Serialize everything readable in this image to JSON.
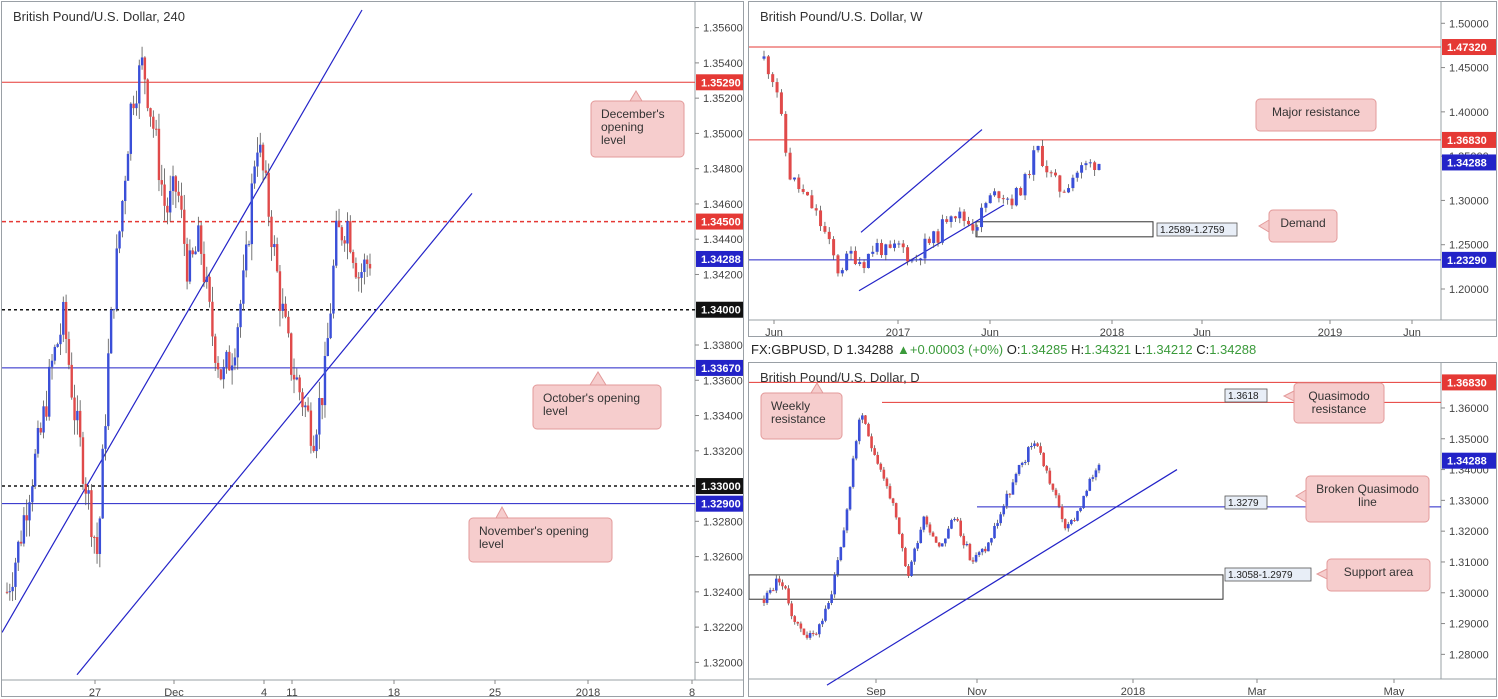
{
  "left_panel": {
    "title": "British Pound/U.S. Dollar, 240",
    "ticks": [
      "1.35600",
      "1.35400",
      "1.35200",
      "1.35000",
      "1.34800",
      "1.34600",
      "1.34400",
      "1.34200",
      "1.33800",
      "1.33600",
      "1.33400",
      "1.33200",
      "1.32800",
      "1.32600",
      "1.32400",
      "1.32200",
      "1.32000"
    ],
    "xticks": [
      "27",
      "Dec",
      "4",
      "11",
      "18",
      "25",
      "2018",
      "8"
    ],
    "price_tags": [
      "1.35290",
      "1.34500",
      "1.34288",
      "1.34000",
      "1.33670",
      "1.33000",
      "1.32900"
    ],
    "notes": [
      [
        "December's",
        "opening",
        "level"
      ],
      [
        "October's opening",
        "level"
      ],
      [
        "November's opening",
        "level"
      ]
    ]
  },
  "weekly_panel": {
    "title": "British Pound/U.S. Dollar, W",
    "ticks": [
      "1.50000",
      "1.45000",
      "1.40000",
      "1.35000",
      "1.30000",
      "1.25000",
      "1.20000"
    ],
    "xticks": [
      "Jun",
      "2017",
      "Jun",
      "2018",
      "Jun",
      "2019",
      "Jun"
    ],
    "price_tags": [
      "1.47320",
      "1.36830",
      "1.34288",
      "1.23290"
    ],
    "notes": [
      [
        "Major resistance"
      ],
      [
        "Demand"
      ]
    ],
    "box_label": "1.2589-1.2759"
  },
  "daily_panel": {
    "ohlc_line": {
      "symbol": "FX:GBPUSD, D",
      "price": "1.34288",
      "change": "+0.00003 (+0%)",
      "o_label": "O:",
      "o": "1.34285",
      "h_label": "H:",
      "h": "1.34321",
      "l_label": "L:",
      "l": "1.34212",
      "c_label": "C:",
      "c": "1.34288"
    },
    "title": "British Pound/U.S. Dollar, D",
    "ticks": [
      "1.36000",
      "1.35000",
      "1.34000",
      "1.33000",
      "1.32000",
      "1.31000",
      "1.30000",
      "1.29000",
      "1.28000"
    ],
    "xticks": [
      "Sep",
      "Nov",
      "2018",
      "Mar",
      "May"
    ],
    "price_tags": [
      "1.36830",
      "1.34288"
    ],
    "notes": [
      [
        "Weekly",
        "resistance"
      ],
      [
        "Quasimodo",
        "resistance"
      ],
      [
        "Broken Quasimodo",
        "line"
      ],
      [
        "Support area"
      ]
    ],
    "box_labels": [
      "1.3618",
      "1.3279",
      "1.3058-1.2979"
    ]
  },
  "colors": {
    "up": "#3a4fd8",
    "down": "#e04a4a",
    "red_level": "#e53935",
    "blue_level": "#2323c8",
    "note_bg": "#f6cdcd",
    "note_border": "#e39a9a"
  },
  "chart_data": [
    {
      "type": "line",
      "title": "British Pound/U.S. Dollar, 240",
      "series": [
        {
          "values": [
            1.324,
            1.3265,
            1.33,
            1.333,
            1.337,
            1.3395,
            1.334,
            1.33,
            1.326,
            1.338,
            1.345,
            1.352,
            1.354,
            1.35,
            1.3455,
            1.347,
            1.342,
            1.344,
            1.339,
            1.336,
            1.338,
            1.342,
            1.35,
            1.346,
            1.341,
            1.337,
            1.335,
            1.333,
            1.336,
            1.344,
            1.345,
            1.342,
            1.3429
          ]
        }
      ],
      "levels": [
        1.3529,
        1.345,
        1.34,
        1.3367,
        1.33,
        1.329
      ],
      "ylim": [
        1.319,
        1.357
      ]
    },
    {
      "type": "line",
      "title": "British Pound/U.S. Dollar, W",
      "series": [
        {
          "values": [
            1.46,
            1.43,
            1.33,
            1.31,
            1.29,
            1.26,
            1.22,
            1.24,
            1.23,
            1.25,
            1.24,
            1.25,
            1.23,
            1.25,
            1.26,
            1.29,
            1.28,
            1.27,
            1.3,
            1.31,
            1.3,
            1.32,
            1.36,
            1.33,
            1.31,
            1.33,
            1.34,
            1.3429
          ]
        }
      ],
      "levels": [
        1.4732,
        1.3683,
        1.2329
      ],
      "box": [
        1.2589,
        1.2759
      ],
      "ylim": [
        1.165,
        1.515
      ]
    },
    {
      "type": "line",
      "title": "British Pound/U.S. Dollar, D",
      "series": [
        {
          "values": [
            1.298,
            1.305,
            1.29,
            1.285,
            1.295,
            1.32,
            1.358,
            1.345,
            1.33,
            1.305,
            1.325,
            1.315,
            1.325,
            1.31,
            1.315,
            1.328,
            1.34,
            1.35,
            1.335,
            1.32,
            1.33,
            1.3429
          ]
        }
      ],
      "levels": [
        1.3683,
        1.3618,
        1.3279
      ],
      "box": [
        1.2979,
        1.3058
      ],
      "ylim": [
        1.272,
        1.372
      ]
    }
  ]
}
